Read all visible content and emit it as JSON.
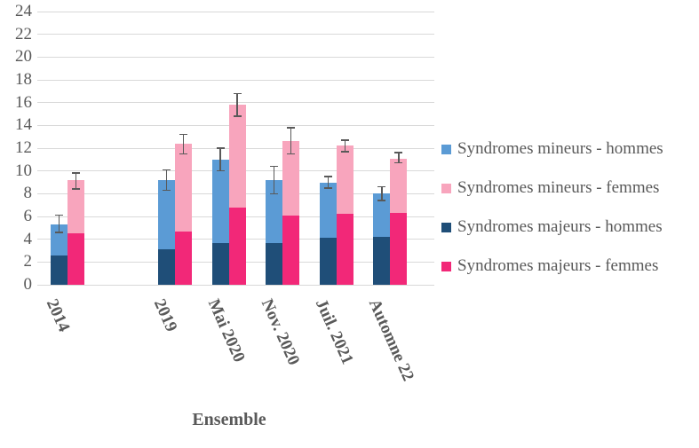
{
  "chart_data": {
    "type": "bar",
    "subtype": "stacked-grouped-with-error-bars",
    "title": "",
    "categories": [
      "2014",
      "2019",
      "Mai 2020",
      "Nov. 2020",
      "Juil. 2021",
      "Automne 22"
    ],
    "category_slots": [
      0,
      2,
      3,
      4,
      5,
      6
    ],
    "total_slots": 7,
    "axis_title_x": "Ensemble",
    "ylim": [
      0,
      24
    ],
    "ytick_step": 2,
    "grid": true,
    "legend_position": "right",
    "series": [
      {
        "name": "Syndromes mineurs - hommes",
        "stack": "hommes",
        "stack_level": 1,
        "color": "#5B9BD5",
        "values": [
          2.7,
          6.1,
          7.3,
          5.5,
          4.9,
          3.8
        ]
      },
      {
        "name": "Syndromes mineurs - femmes",
        "stack": "femmes",
        "stack_level": 1,
        "color": "#F8A5BD",
        "values": [
          4.7,
          7.7,
          9.0,
          6.5,
          6.0,
          4.8
        ]
      },
      {
        "name": "Syndromes majeurs - hommes",
        "stack": "hommes",
        "stack_level": 0,
        "color": "#1F4E78",
        "values": [
          2.6,
          3.1,
          3.7,
          3.7,
          4.1,
          4.2
        ]
      },
      {
        "name": "Syndromes majeurs - femmes",
        "stack": "femmes",
        "stack_level": 0,
        "color": "#F22878",
        "values": [
          4.5,
          4.7,
          6.8,
          6.1,
          6.2,
          6.3
        ]
      }
    ],
    "stack_totals": {
      "hommes": [
        5.3,
        9.2,
        11.0,
        9.2,
        9.0,
        8.0
      ],
      "femmes": [
        9.2,
        12.4,
        15.8,
        12.6,
        12.2,
        11.1
      ]
    },
    "error_bars": {
      "hommes": {
        "low": [
          4.6,
          8.3,
          10.0,
          8.0,
          8.5,
          7.4
        ],
        "high": [
          6.1,
          10.1,
          12.0,
          10.4,
          9.5,
          8.6
        ]
      },
      "femmes": {
        "low": [
          8.4,
          11.5,
          14.8,
          11.5,
          11.7,
          10.7
        ],
        "high": [
          9.8,
          13.2,
          16.8,
          13.8,
          12.7,
          11.6
        ]
      }
    },
    "colors": {
      "grid": "#D9D9D9",
      "axis_text": "#595959",
      "error_bar": "#595959",
      "background": "#FFFFFF"
    }
  },
  "legend": {
    "entries": [
      {
        "label": "Syndromes mineurs - hommes",
        "color": "#5B9BD5"
      },
      {
        "label": "Syndromes mineurs - femmes",
        "color": "#F8A5BD"
      },
      {
        "label": "Syndromes majeurs - hommes",
        "color": "#1F4E78"
      },
      {
        "label": "Syndromes majeurs - femmes",
        "color": "#F22878"
      }
    ]
  }
}
